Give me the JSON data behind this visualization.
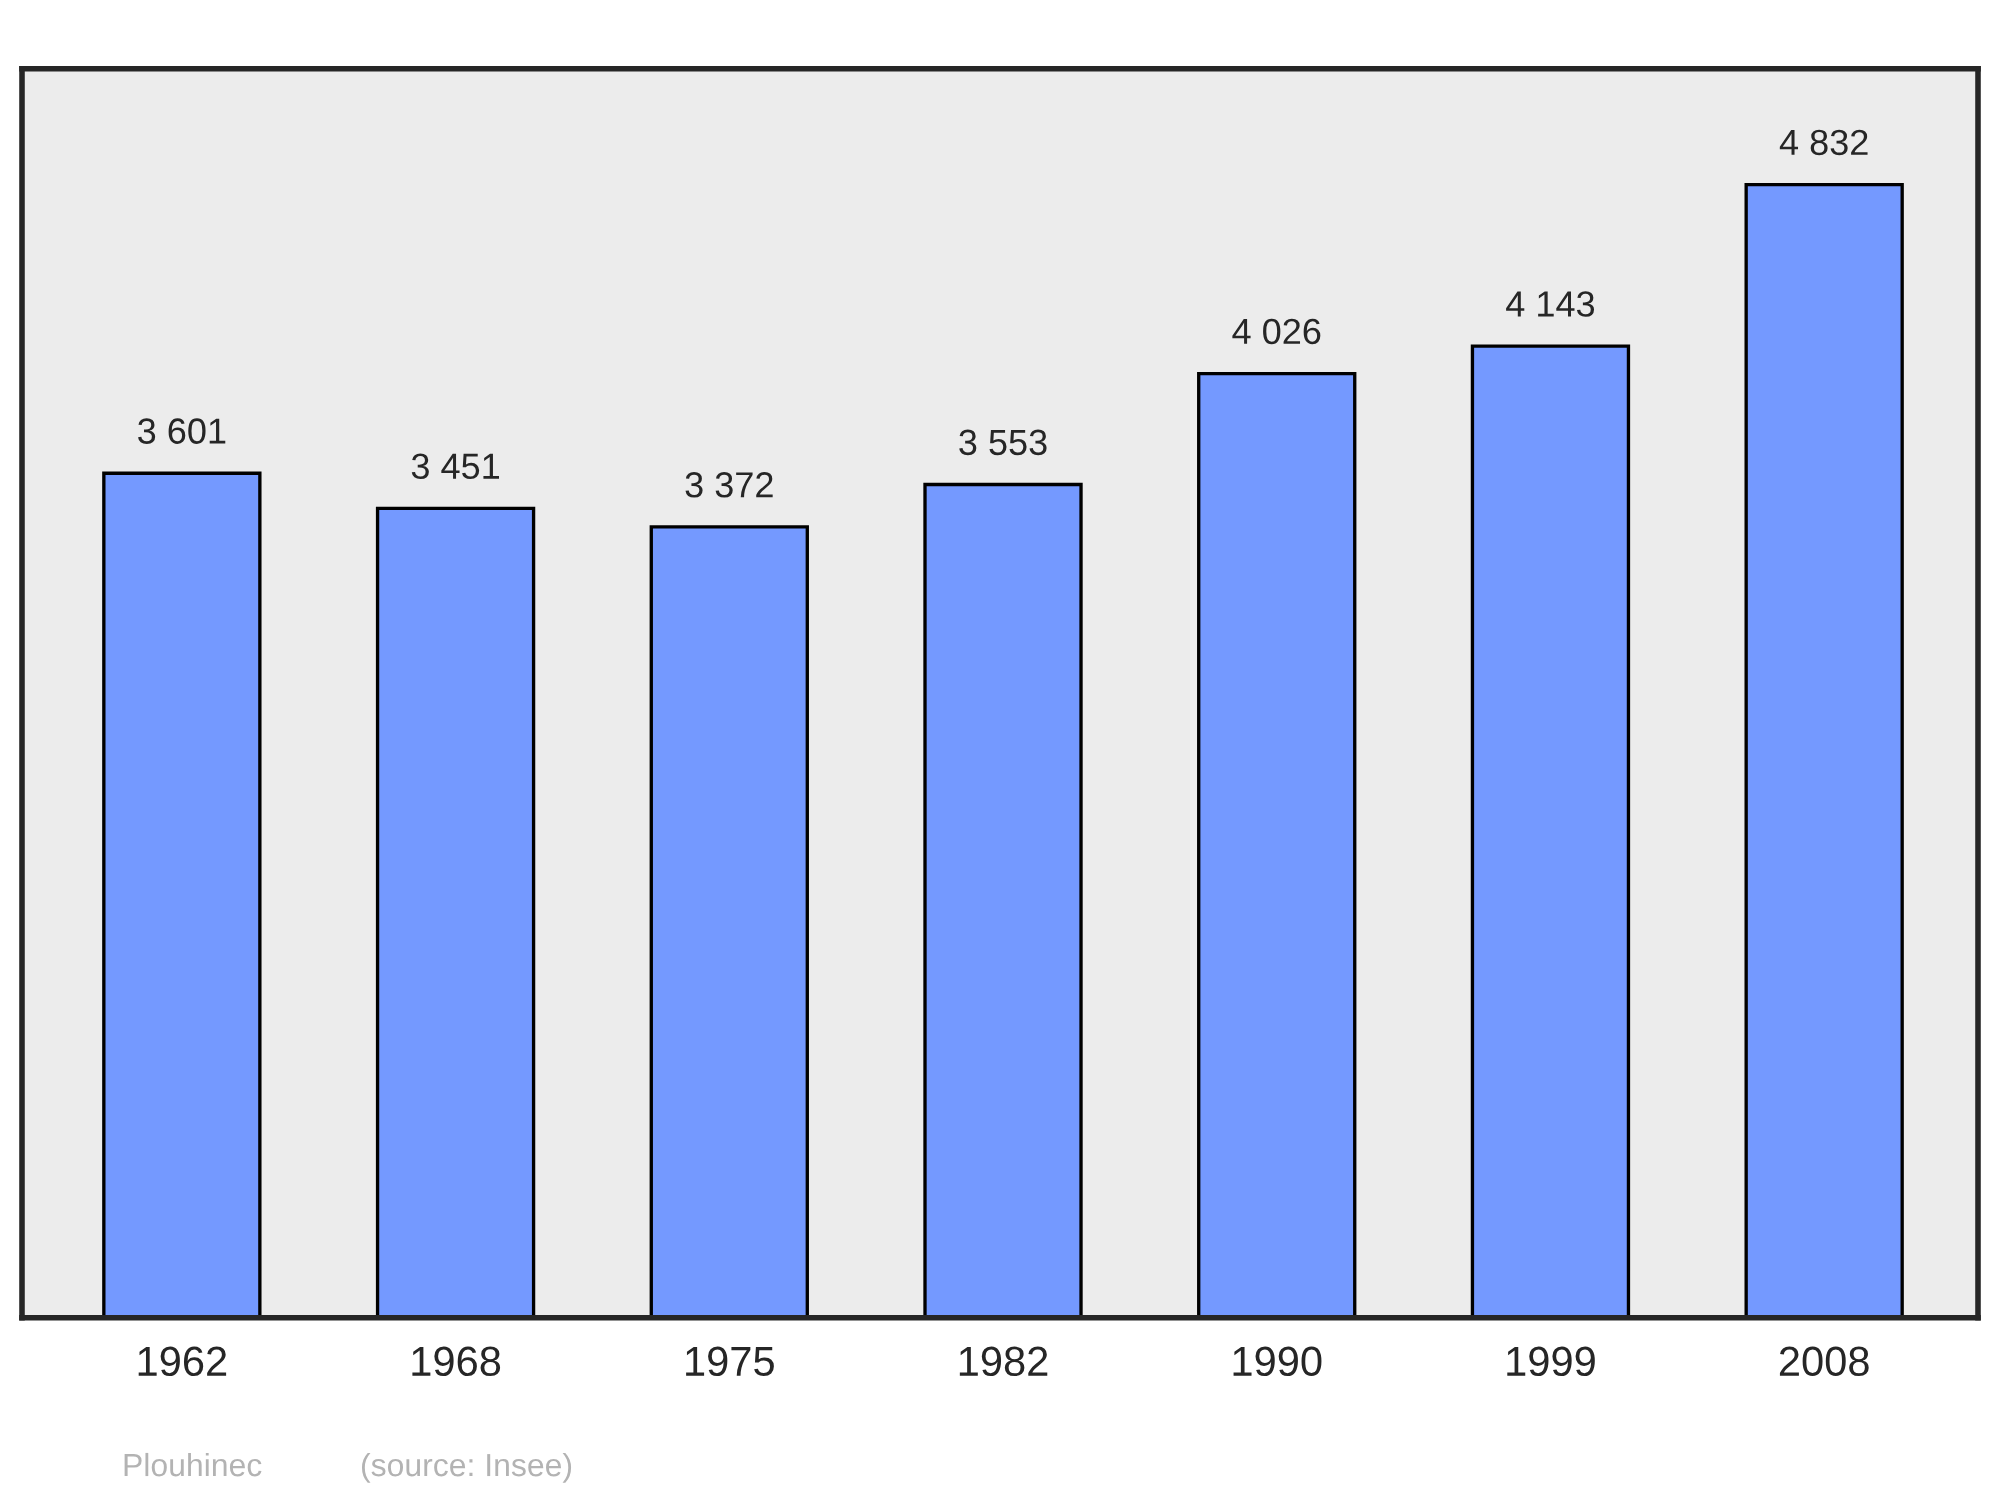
{
  "chart_data": {
    "type": "bar",
    "categories": [
      "1962",
      "1968",
      "1975",
      "1982",
      "1990",
      "1999",
      "2008"
    ],
    "values": [
      3601,
      3451,
      3372,
      3553,
      4026,
      4143,
      4832
    ],
    "value_labels": [
      "3 601",
      "3 451",
      "3 372",
      "3 553",
      "4 026",
      "4 143",
      "4 832"
    ],
    "color": "#7499ff",
    "ylim": [
      0,
      5326
    ],
    "tick_labels": "x",
    "annotations": [
      "Plouhinec",
      "(source: Insee)"
    ]
  }
}
